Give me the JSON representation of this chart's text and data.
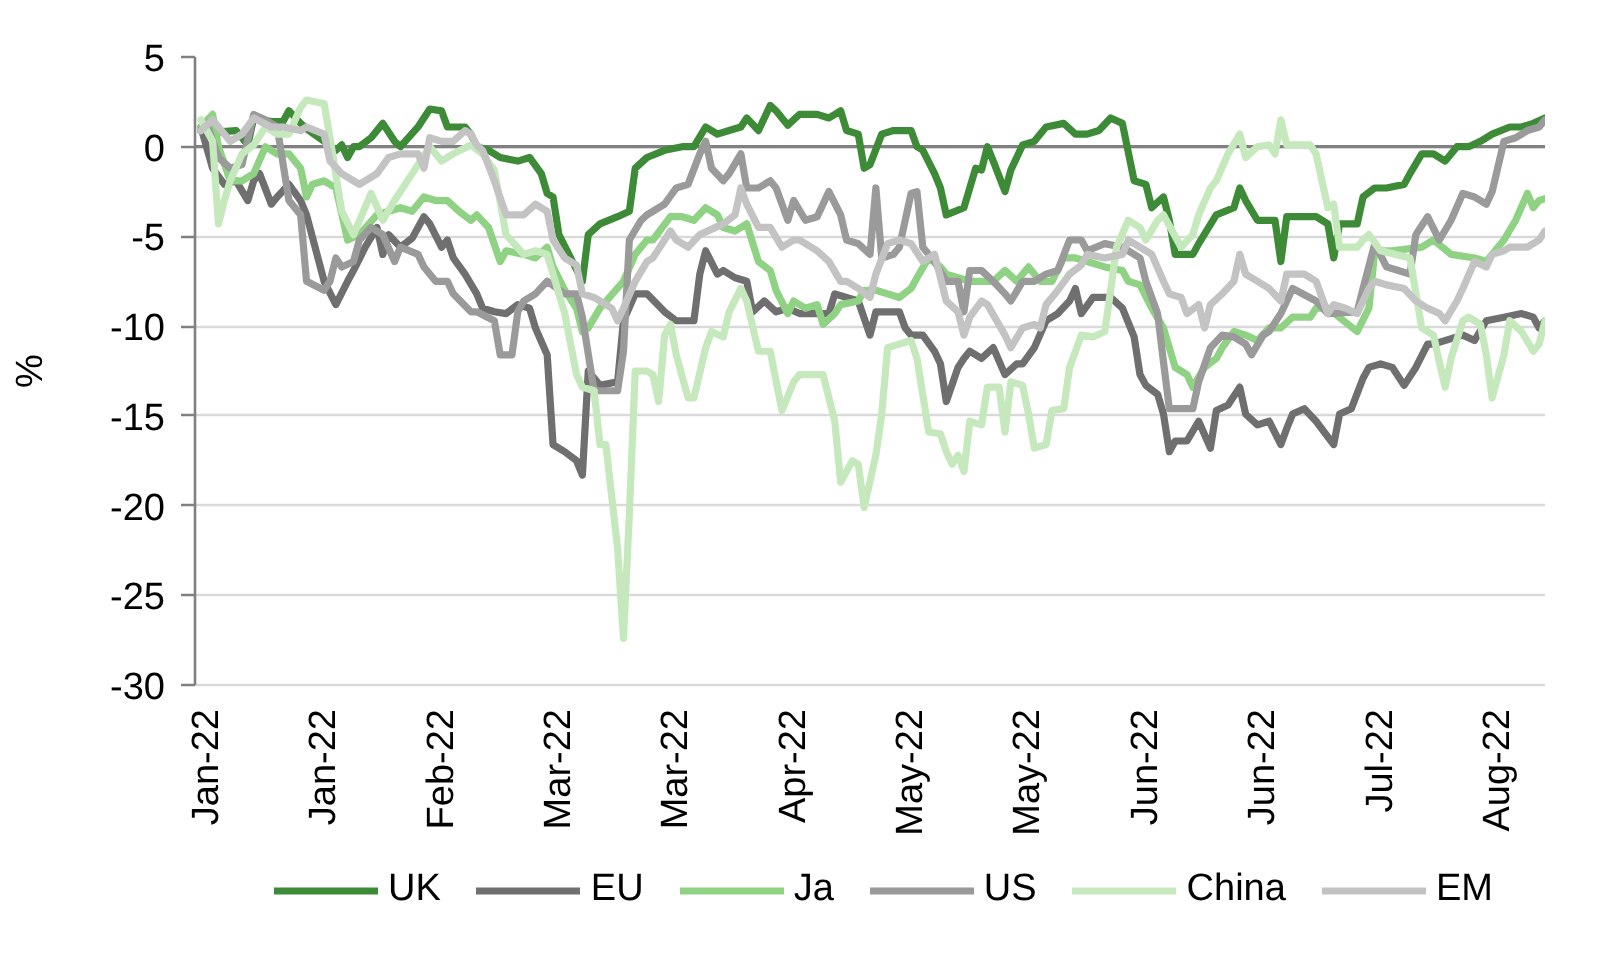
{
  "chart_data": {
    "type": "line",
    "ylabel": "%",
    "xlim": [
      "2021-12-30",
      "2022-08-17"
    ],
    "ylim": [
      -30,
      5
    ],
    "xticks": [
      {
        "value": "2022-01-01",
        "label": "Jan-22"
      },
      {
        "value": "2022-01-21",
        "label": "Jan-22"
      },
      {
        "value": "2022-02-10",
        "label": "Feb-22"
      },
      {
        "value": "2022-03-02",
        "label": "Mar-22"
      },
      {
        "value": "2022-03-22",
        "label": "Mar-22"
      },
      {
        "value": "2022-04-11",
        "label": "Apr-22"
      },
      {
        "value": "2022-05-01",
        "label": "May-22"
      },
      {
        "value": "2022-05-21",
        "label": "May-22"
      },
      {
        "value": "2022-06-10",
        "label": "Jun-22"
      },
      {
        "value": "2022-06-30",
        "label": "Jun-22"
      },
      {
        "value": "2022-07-20",
        "label": "Jul-22"
      },
      {
        "value": "2022-08-09",
        "label": "Aug-22"
      }
    ],
    "yticks": [
      5,
      0,
      -5,
      -10,
      -15,
      -20,
      -25,
      -30
    ],
    "grid": "y",
    "legend": "bottom",
    "ref_lines": [
      {
        "axis": "y",
        "value": 0,
        "color": "#808080"
      }
    ],
    "series": [
      {
        "name": "UK",
        "color": "#3d8b37",
        "x": [
          "2021-12-31",
          "2022-01-02",
          "2022-01-06",
          "2022-01-08",
          "2022-01-09",
          "2022-01-12",
          "2022-01-14",
          "2022-01-15",
          "2022-01-17",
          "2022-01-18",
          "2022-01-21",
          "2022-01-23",
          "2022-01-24",
          "2022-01-25",
          "2022-01-26",
          "2022-01-27",
          "2022-01-29",
          "2022-01-31",
          "2022-02-02",
          "2022-02-03",
          "2022-02-06",
          "2022-02-08",
          "2022-02-10",
          "2022-02-11",
          "2022-02-14",
          "2022-02-15",
          "2022-02-16",
          "2022-02-18",
          "2022-02-20",
          "2022-02-23",
          "2022-02-25",
          "2022-02-27",
          "2022-02-28",
          "2022-03-01",
          "2022-03-02",
          "2022-03-04",
          "2022-03-06",
          "2022-03-07",
          "2022-03-09",
          "2022-03-12",
          "2022-03-14",
          "2022-03-15",
          "2022-03-17",
          "2022-03-20",
          "2022-03-23",
          "2022-03-25",
          "2022-03-27",
          "2022-03-29",
          "2022-03-31",
          "2022-04-02",
          "2022-04-03",
          "2022-04-05",
          "2022-04-07",
          "2022-04-08",
          "2022-04-10",
          "2022-04-12",
          "2022-04-15",
          "2022-04-17",
          "2022-04-19",
          "2022-04-20",
          "2022-04-22",
          "2022-04-23",
          "2022-04-24",
          "2022-04-26",
          "2022-04-28",
          "2022-05-01",
          "2022-05-02",
          "2022-05-03",
          "2022-05-05",
          "2022-05-06",
          "2022-05-07",
          "2022-05-10",
          "2022-05-11",
          "2022-05-12",
          "2022-05-13",
          "2022-05-14",
          "2022-05-15",
          "2022-05-17",
          "2022-05-18",
          "2022-05-20",
          "2022-05-22",
          "2022-05-24",
          "2022-05-27",
          "2022-05-29",
          "2022-05-31",
          "2022-06-02",
          "2022-06-04",
          "2022-06-06",
          "2022-06-08",
          "2022-06-10",
          "2022-06-11",
          "2022-06-13",
          "2022-06-14",
          "2022-06-15",
          "2022-06-18",
          "2022-06-19",
          "2022-06-22",
          "2022-06-25",
          "2022-06-26",
          "2022-06-27",
          "2022-06-29",
          "2022-07-02",
          "2022-07-03",
          "2022-07-04",
          "2022-07-09",
          "2022-07-11",
          "2022-07-12",
          "2022-07-13",
          "2022-07-16",
          "2022-07-17",
          "2022-07-19",
          "2022-07-21",
          "2022-07-24",
          "2022-07-25",
          "2022-07-27",
          "2022-07-29",
          "2022-07-31",
          "2022-08-02",
          "2022-08-04",
          "2022-08-06",
          "2022-08-08",
          "2022-08-11",
          "2022-08-13",
          "2022-08-15",
          "2022-08-17"
        ],
        "values": [
          0.9,
          0.8,
          0.9,
          0.1,
          1.6,
          1.4,
          1.4,
          2.0,
          1.3,
          1.0,
          0.3,
          -0.2,
          0.1,
          -0.6,
          0.0,
          0.0,
          0.5,
          1.3,
          0.3,
          0.0,
          1.1,
          2.1,
          2.0,
          1.1,
          1.1,
          0.7,
          0.0,
          -0.2,
          -0.6,
          -0.8,
          -0.6,
          -1.5,
          -2.6,
          -2.8,
          -4.9,
          -6.2,
          -7.5,
          -4.9,
          -4.3,
          -3.9,
          -3.6,
          -1.2,
          -0.6,
          -0.2,
          0.0,
          0.0,
          1.1,
          0.7,
          0.9,
          1.1,
          1.6,
          0.9,
          2.3,
          2.0,
          1.2,
          1.8,
          1.8,
          1.6,
          2.0,
          0.9,
          0.7,
          -1.2,
          -1.0,
          0.7,
          0.9,
          0.9,
          0.0,
          -0.2,
          -1.5,
          -2.3,
          -3.8,
          -3.4,
          -2.3,
          -1.2,
          -1.3,
          0.0,
          -0.8,
          -2.5,
          -1.3,
          0.1,
          0.3,
          1.1,
          1.3,
          0.7,
          0.7,
          0.9,
          1.6,
          1.3,
          -1.9,
          -2.1,
          -3.4,
          -2.8,
          -4.1,
          -6.0,
          -6.0,
          -5.4,
          -3.8,
          -3.4,
          -2.3,
          -3.0,
          -4.1,
          -4.1,
          -6.4,
          -3.9,
          -3.9,
          -4.3,
          -6.2,
          -4.3,
          -4.3,
          -2.8,
          -2.3,
          -2.3,
          -2.1,
          -1.5,
          -0.4,
          -0.4,
          -0.8,
          0.0,
          0.0,
          0.3,
          0.7,
          1.1,
          1.1,
          1.3,
          1.6
        ]
      },
      {
        "name": "EU",
        "color": "#6f6f6f",
        "x": [
          "2021-12-31",
          "2022-01-02",
          "2022-01-04",
          "2022-01-06",
          "2022-01-08",
          "2022-01-09",
          "2022-01-10",
          "2022-01-12",
          "2022-01-13",
          "2022-01-15",
          "2022-01-17",
          "2022-01-18",
          "2022-01-21",
          "2022-01-23",
          "2022-01-25",
          "2022-01-26",
          "2022-01-28",
          "2022-01-30",
          "2022-01-31",
          "2022-02-01",
          "2022-02-03",
          "2022-02-05",
          "2022-02-07",
          "2022-02-08",
          "2022-02-10",
          "2022-02-11",
          "2022-02-12",
          "2022-02-14",
          "2022-02-16",
          "2022-02-17",
          "2022-02-19",
          "2022-02-21",
          "2022-02-23",
          "2022-02-25",
          "2022-02-26",
          "2022-02-28",
          "2022-03-01",
          "2022-03-03",
          "2022-03-05",
          "2022-03-06",
          "2022-03-07",
          "2022-03-09",
          "2022-03-12",
          "2022-03-13",
          "2022-03-15",
          "2022-03-17",
          "2022-03-20",
          "2022-03-22",
          "2022-03-25",
          "2022-03-26",
          "2022-03-27",
          "2022-03-29",
          "2022-03-30",
          "2022-04-01",
          "2022-04-03",
          "2022-04-04",
          "2022-04-06",
          "2022-04-08",
          "2022-04-10",
          "2022-04-12",
          "2022-04-17",
          "2022-04-18",
          "2022-04-20",
          "2022-04-22",
          "2022-04-24",
          "2022-04-25",
          "2022-04-29",
          "2022-04-30",
          "2022-05-01",
          "2022-05-03",
          "2022-05-05",
          "2022-05-06",
          "2022-05-07",
          "2022-05-09",
          "2022-05-10",
          "2022-05-11",
          "2022-05-13",
          "2022-05-15",
          "2022-05-17",
          "2022-05-19",
          "2022-05-20",
          "2022-05-22",
          "2022-05-24",
          "2022-05-26",
          "2022-05-28",
          "2022-05-29",
          "2022-05-30",
          "2022-06-01",
          "2022-06-04",
          "2022-06-06",
          "2022-06-08",
          "2022-06-09",
          "2022-06-10",
          "2022-06-12",
          "2022-06-13",
          "2022-06-14",
          "2022-06-15",
          "2022-06-17",
          "2022-06-19",
          "2022-06-21",
          "2022-06-22",
          "2022-06-24",
          "2022-06-26",
          "2022-06-27",
          "2022-06-29",
          "2022-07-01",
          "2022-07-03",
          "2022-07-04",
          "2022-07-05",
          "2022-07-07",
          "2022-07-09",
          "2022-07-12",
          "2022-07-13",
          "2022-07-15",
          "2022-07-17",
          "2022-07-18",
          "2022-07-20",
          "2022-07-22",
          "2022-07-24",
          "2022-07-26",
          "2022-07-28",
          "2022-07-29",
          "2022-08-02",
          "2022-08-03",
          "2022-08-05",
          "2022-08-07",
          "2022-08-10",
          "2022-08-13",
          "2022-08-15",
          "2022-08-16",
          "2022-08-17"
        ],
        "values": [
          1.1,
          -1.2,
          -2.1,
          -1.9,
          -3.0,
          -1.9,
          -1.5,
          -3.2,
          -2.8,
          -2.1,
          -3.0,
          -3.8,
          -7.5,
          -8.8,
          -7.5,
          -6.9,
          -5.6,
          -4.5,
          -6.0,
          -4.9,
          -5.6,
          -5.1,
          -3.9,
          -4.3,
          -5.6,
          -5.2,
          -6.2,
          -7.1,
          -8.2,
          -9.0,
          -9.2,
          -9.3,
          -8.8,
          -9.0,
          -10.1,
          -11.6,
          -16.6,
          -17.0,
          -17.5,
          -18.3,
          -12.5,
          -13.3,
          -13.1,
          -9.7,
          -8.2,
          -8.2,
          -9.2,
          -9.7,
          -9.7,
          -7.1,
          -5.8,
          -7.1,
          -6.9,
          -7.3,
          -7.5,
          -9.2,
          -8.6,
          -9.2,
          -9.0,
          -9.3,
          -9.3,
          -8.2,
          -8.4,
          -8.6,
          -10.5,
          -9.2,
          -9.2,
          -10.1,
          -10.5,
          -10.5,
          -11.4,
          -12.1,
          -14.2,
          -12.3,
          -11.8,
          -11.4,
          -11.8,
          -11.2,
          -12.7,
          -12.1,
          -12.1,
          -11.2,
          -9.7,
          -9.3,
          -8.6,
          -7.9,
          -9.3,
          -8.4,
          -8.4,
          -9.0,
          -10.6,
          -12.7,
          -13.3,
          -13.8,
          -14.9,
          -17.0,
          -16.4,
          -16.4,
          -15.3,
          -16.8,
          -14.7,
          -14.4,
          -13.4,
          -14.9,
          -15.5,
          -15.3,
          -16.6,
          -15.7,
          -14.9,
          -14.6,
          -15.3,
          -16.6,
          -14.9,
          -14.6,
          -12.9,
          -12.3,
          -12.1,
          -12.3,
          -13.3,
          -12.3,
          -11.0,
          -11.0,
          -10.6,
          -10.5,
          -10.8,
          -9.7,
          -9.5,
          -9.3,
          -9.5,
          -10.1,
          -9.7
        ]
      },
      {
        "name": "Ja",
        "color": "#8fd283",
        "x": [
          "2021-12-31",
          "2022-01-02",
          "2022-01-03",
          "2022-01-05",
          "2022-01-07",
          "2022-01-09",
          "2022-01-11",
          "2022-01-13",
          "2022-01-15",
          "2022-01-17",
          "2022-01-18",
          "2022-01-19",
          "2022-01-21",
          "2022-01-23",
          "2022-01-25",
          "2022-01-27",
          "2022-01-30",
          "2022-02-01",
          "2022-02-03",
          "2022-02-05",
          "2022-02-07",
          "2022-02-09",
          "2022-02-11",
          "2022-02-13",
          "2022-02-15",
          "2022-02-16",
          "2022-02-18",
          "2022-02-20",
          "2022-02-21",
          "2022-02-24",
          "2022-02-26",
          "2022-02-28",
          "2022-03-01",
          "2022-03-03",
          "2022-03-05",
          "2022-03-06",
          "2022-03-07",
          "2022-03-09",
          "2022-03-13",
          "2022-03-15",
          "2022-03-17",
          "2022-03-18",
          "2022-03-21",
          "2022-03-23",
          "2022-03-25",
          "2022-03-27",
          "2022-03-29",
          "2022-03-30",
          "2022-04-01",
          "2022-04-03",
          "2022-04-05",
          "2022-04-07",
          "2022-04-08",
          "2022-04-10",
          "2022-04-11",
          "2022-04-13",
          "2022-04-15",
          "2022-04-16",
          "2022-04-18",
          "2022-04-19",
          "2022-04-22",
          "2022-04-23",
          "2022-04-25",
          "2022-04-27",
          "2022-04-29",
          "2022-05-01",
          "2022-05-02",
          "2022-05-04",
          "2022-05-06",
          "2022-05-07",
          "2022-05-09",
          "2022-05-11",
          "2022-05-15",
          "2022-05-17",
          "2022-05-19",
          "2022-05-21",
          "2022-05-23",
          "2022-05-25",
          "2022-05-27",
          "2022-05-29",
          "2022-05-31",
          "2022-06-03",
          "2022-06-06",
          "2022-06-07",
          "2022-06-09",
          "2022-06-11",
          "2022-06-13",
          "2022-06-15",
          "2022-06-17",
          "2022-06-18",
          "2022-06-20",
          "2022-06-22",
          "2022-06-23",
          "2022-06-25",
          "2022-06-27",
          "2022-06-29",
          "2022-07-01",
          "2022-07-03",
          "2022-07-05",
          "2022-07-08",
          "2022-07-09",
          "2022-07-11",
          "2022-07-16",
          "2022-07-18",
          "2022-07-19",
          "2022-07-22",
          "2022-07-27",
          "2022-07-29",
          "2022-08-01",
          "2022-08-05",
          "2022-08-07",
          "2022-08-10",
          "2022-08-12",
          "2022-08-14",
          "2022-08-15",
          "2022-08-16",
          "2022-08-17"
        ],
        "values": [
          1.1,
          1.8,
          0.0,
          -1.9,
          -1.9,
          -1.5,
          0.0,
          -0.4,
          -0.4,
          -1.2,
          -2.8,
          -2.1,
          -1.9,
          -2.3,
          -5.2,
          -4.9,
          -3.8,
          -3.6,
          -3.4,
          -3.6,
          -2.8,
          -3.0,
          -3.0,
          -3.6,
          -4.1,
          -3.8,
          -4.5,
          -6.4,
          -5.8,
          -6.0,
          -6.2,
          -5.6,
          -6.7,
          -8.0,
          -9.0,
          -10.3,
          -10.1,
          -9.0,
          -7.5,
          -6.0,
          -5.2,
          -5.2,
          -3.9,
          -3.9,
          -4.1,
          -3.4,
          -3.8,
          -4.5,
          -4.7,
          -4.3,
          -6.4,
          -6.9,
          -8.0,
          -9.3,
          -8.6,
          -9.0,
          -8.8,
          -9.9,
          -9.3,
          -8.8,
          -8.6,
          -8.0,
          -8.0,
          -8.2,
          -8.4,
          -7.9,
          -7.3,
          -6.2,
          -6.7,
          -7.1,
          -7.3,
          -7.5,
          -7.5,
          -6.9,
          -7.5,
          -6.7,
          -7.5,
          -7.5,
          -6.2,
          -6.2,
          -6.4,
          -6.7,
          -6.9,
          -7.5,
          -7.7,
          -9.0,
          -10.1,
          -12.3,
          -12.7,
          -13.4,
          -12.3,
          -11.8,
          -11.2,
          -10.3,
          -10.5,
          -10.8,
          -10.1,
          -10.1,
          -9.5,
          -9.5,
          -9.0,
          -9.0,
          -10.3,
          -9.0,
          -5.8,
          -5.8,
          -5.6,
          -5.2,
          -6.0,
          -6.2,
          -6.4,
          -5.2,
          -4.1,
          -2.6,
          -3.4,
          -3.0,
          -2.9
        ]
      },
      {
        "name": "US",
        "color": "#9a9a9a",
        "x": [
          "2021-12-31",
          "2022-01-01",
          "2022-01-03",
          "2022-01-05",
          "2022-01-07",
          "2022-01-09",
          "2022-01-11",
          "2022-01-13",
          "2022-01-15",
          "2022-01-17",
          "2022-01-18",
          "2022-01-21",
          "2022-01-22",
          "2022-01-23",
          "2022-01-24",
          "2022-01-26",
          "2022-01-27",
          "2022-01-29",
          "2022-01-31",
          "2022-02-02",
          "2022-02-03",
          "2022-02-06",
          "2022-02-07",
          "2022-02-09",
          "2022-02-11",
          "2022-02-12",
          "2022-02-15",
          "2022-02-16",
          "2022-02-19",
          "2022-02-20",
          "2022-02-22",
          "2022-02-23",
          "2022-02-24",
          "2022-02-26",
          "2022-02-28",
          "2022-03-03",
          "2022-03-05",
          "2022-03-06",
          "2022-03-08",
          "2022-03-12",
          "2022-03-13",
          "2022-03-14",
          "2022-03-16",
          "2022-03-17",
          "2022-03-18",
          "2022-03-20",
          "2022-03-22",
          "2022-03-24",
          "2022-03-26",
          "2022-03-27",
          "2022-03-28",
          "2022-03-30",
          "2022-03-31",
          "2022-04-02",
          "2022-04-03",
          "2022-04-05",
          "2022-04-07",
          "2022-04-08",
          "2022-04-10",
          "2022-04-11",
          "2022-04-13",
          "2022-04-15",
          "2022-04-17",
          "2022-04-19",
          "2022-04-20",
          "2022-04-22",
          "2022-04-24",
          "2022-04-25",
          "2022-04-26",
          "2022-04-28",
          "2022-04-29",
          "2022-05-01",
          "2022-05-02",
          "2022-05-03",
          "2022-05-05",
          "2022-05-07",
          "2022-05-09",
          "2022-05-10",
          "2022-05-11",
          "2022-05-13",
          "2022-05-15",
          "2022-05-17",
          "2022-05-18",
          "2022-05-20",
          "2022-05-22",
          "2022-05-24",
          "2022-05-26",
          "2022-05-28",
          "2022-05-30",
          "2022-05-31",
          "2022-06-03",
          "2022-06-06",
          "2022-06-09",
          "2022-06-10",
          "2022-06-12",
          "2022-06-13",
          "2022-06-14",
          "2022-06-18",
          "2022-06-19",
          "2022-06-21",
          "2022-06-23",
          "2022-06-25",
          "2022-06-27",
          "2022-06-28",
          "2022-06-30",
          "2022-07-01",
          "2022-07-03",
          "2022-07-05",
          "2022-07-09",
          "2022-07-11",
          "2022-07-16",
          "2022-07-17",
          "2022-07-19",
          "2022-07-21",
          "2022-07-23",
          "2022-07-25",
          "2022-07-26",
          "2022-07-28",
          "2022-07-30",
          "2022-08-01",
          "2022-08-03",
          "2022-08-05",
          "2022-08-07",
          "2022-08-08",
          "2022-08-10",
          "2022-08-12",
          "2022-08-14",
          "2022-08-16",
          "2022-08-17"
        ],
        "values": [
          0.9,
          1.3,
          -0.6,
          -1.2,
          -1.0,
          1.8,
          1.5,
          1.1,
          -3.0,
          -3.8,
          -7.5,
          -8.0,
          -7.5,
          -6.2,
          -6.7,
          -6.4,
          -5.2,
          -4.5,
          -4.9,
          -6.4,
          -5.6,
          -6.0,
          -6.7,
          -7.5,
          -7.5,
          -8.2,
          -9.2,
          -9.2,
          -9.7,
          -11.6,
          -11.6,
          -9.2,
          -8.6,
          -8.2,
          -7.5,
          -8.2,
          -8.2,
          -9.5,
          -13.6,
          -13.6,
          -11.4,
          -5.2,
          -4.1,
          -3.8,
          -3.6,
          -3.2,
          -2.3,
          -2.1,
          -0.4,
          0.3,
          -1.2,
          -1.9,
          -1.5,
          -0.4,
          -2.3,
          -2.3,
          -1.9,
          -2.3,
          -4.1,
          -3.0,
          -4.1,
          -3.9,
          -2.5,
          -3.8,
          -5.2,
          -5.4,
          -6.0,
          -2.3,
          -6.2,
          -6.0,
          -5.6,
          -2.6,
          -2.5,
          -5.6,
          -6.4,
          -7.5,
          -7.5,
          -9.2,
          -6.9,
          -6.9,
          -7.5,
          -8.2,
          -8.6,
          -7.5,
          -7.5,
          -7.1,
          -6.9,
          -5.2,
          -5.2,
          -5.8,
          -5.4,
          -5.6,
          -6.2,
          -7.5,
          -9.3,
          -12.0,
          -14.6,
          -14.6,
          -13.1,
          -11.2,
          -10.5,
          -10.6,
          -11.0,
          -11.6,
          -10.5,
          -10.3,
          -9.3,
          -7.9,
          -8.6,
          -9.3,
          -9.2,
          -7.9,
          -5.4,
          -6.7,
          -6.9,
          -7.1,
          -4.9,
          -3.9,
          -5.2,
          -4.1,
          -2.6,
          -2.8,
          -3.2,
          -2.5,
          0.3,
          0.5,
          0.9,
          1.1,
          1.5
        ]
      },
      {
        "name": "China",
        "color": "#c5e9bd",
        "x": [
          "2021-12-31",
          "2022-01-02",
          "2022-01-03",
          "2022-01-04",
          "2022-01-05",
          "2022-01-07",
          "2022-01-09",
          "2022-01-11",
          "2022-01-13",
          "2022-01-15",
          "2022-01-17",
          "2022-01-18",
          "2022-01-21",
          "2022-01-22",
          "2022-01-24",
          "2022-01-26",
          "2022-01-29",
          "2022-01-31",
          "2022-02-02",
          "2022-02-05",
          "2022-02-08",
          "2022-02-10",
          "2022-02-12",
          "2022-02-15",
          "2022-02-17",
          "2022-02-19",
          "2022-02-21",
          "2022-02-24",
          "2022-02-26",
          "2022-02-28",
          "2022-03-03",
          "2022-03-05",
          "2022-03-06",
          "2022-03-08",
          "2022-03-09",
          "2022-03-10",
          "2022-03-12",
          "2022-03-13",
          "2022-03-14",
          "2022-03-15",
          "2022-03-17",
          "2022-03-18",
          "2022-03-19",
          "2022-03-20",
          "2022-03-21",
          "2022-03-22",
          "2022-03-24",
          "2022-03-25",
          "2022-03-27",
          "2022-03-28",
          "2022-03-30",
          "2022-03-31",
          "2022-04-02",
          "2022-04-03",
          "2022-04-05",
          "2022-04-07",
          "2022-04-09",
          "2022-04-11",
          "2022-04-12",
          "2022-04-16",
          "2022-04-18",
          "2022-04-19",
          "2022-04-21",
          "2022-04-22",
          "2022-04-23",
          "2022-04-25",
          "2022-04-26",
          "2022-04-27",
          "2022-04-29",
          "2022-05-01",
          "2022-05-02",
          "2022-05-04",
          "2022-05-06",
          "2022-05-07",
          "2022-05-08",
          "2022-05-09",
          "2022-05-10",
          "2022-05-11",
          "2022-05-13",
          "2022-05-14",
          "2022-05-16",
          "2022-05-17",
          "2022-05-18",
          "2022-05-20",
          "2022-05-21",
          "2022-05-22",
          "2022-05-24",
          "2022-05-25",
          "2022-05-27",
          "2022-05-28",
          "2022-05-30",
          "2022-06-01",
          "2022-06-03",
          "2022-06-04",
          "2022-06-05",
          "2022-06-07",
          "2022-06-09",
          "2022-06-10",
          "2022-06-12",
          "2022-06-13",
          "2022-06-16",
          "2022-06-18",
          "2022-06-19",
          "2022-06-21",
          "2022-06-22",
          "2022-06-24",
          "2022-06-26",
          "2022-06-27",
          "2022-06-29",
          "2022-07-01",
          "2022-07-02",
          "2022-07-03",
          "2022-07-04",
          "2022-07-08",
          "2022-07-09",
          "2022-07-11",
          "2022-07-12",
          "2022-07-13",
          "2022-07-16",
          "2022-07-17",
          "2022-07-18",
          "2022-07-20",
          "2022-07-25",
          "2022-07-27",
          "2022-07-29",
          "2022-07-30",
          "2022-07-31",
          "2022-08-01",
          "2022-08-03",
          "2022-08-04",
          "2022-08-06",
          "2022-08-07",
          "2022-08-08",
          "2022-08-10",
          "2022-08-11",
          "2022-08-13",
          "2022-08-15",
          "2022-08-16",
          "2022-08-17"
        ],
        "values": [
          1.5,
          0.3,
          -4.3,
          -3.0,
          -1.9,
          -0.4,
          0.1,
          1.1,
          0.7,
          0.7,
          2.2,
          2.6,
          2.4,
          0.5,
          -3.6,
          -4.9,
          -2.6,
          -4.1,
          -3.0,
          -1.5,
          0.0,
          -0.8,
          -0.4,
          0.1,
          -0.4,
          -1.3,
          -4.9,
          -6.0,
          -5.8,
          -6.0,
          -9.3,
          -12.7,
          -13.4,
          -13.6,
          -16.6,
          -16.6,
          -22.4,
          -27.4,
          -20.5,
          -12.5,
          -12.5,
          -12.7,
          -14.2,
          -10.5,
          -9.9,
          -11.6,
          -14.0,
          -14.0,
          -11.2,
          -10.3,
          -10.6,
          -9.2,
          -7.9,
          -8.6,
          -11.4,
          -11.4,
          -14.7,
          -13.1,
          -12.7,
          -12.7,
          -15.3,
          -18.7,
          -17.5,
          -17.7,
          -20.1,
          -17.2,
          -14.9,
          -11.2,
          -11.0,
          -10.8,
          -11.8,
          -15.9,
          -16.0,
          -17.0,
          -17.7,
          -17.2,
          -18.1,
          -15.3,
          -15.5,
          -13.4,
          -13.4,
          -15.9,
          -13.1,
          -13.3,
          -14.9,
          -16.8,
          -16.6,
          -14.7,
          -14.6,
          -12.3,
          -10.5,
          -10.6,
          -10.3,
          -8.0,
          -5.6,
          -4.1,
          -4.5,
          -5.2,
          -4.1,
          -3.8,
          -5.6,
          -4.9,
          -3.8,
          -2.3,
          -1.9,
          -0.4,
          0.7,
          -0.6,
          0.0,
          0.1,
          -0.4,
          1.5,
          0.1,
          0.1,
          -0.4,
          -3.4,
          -3.2,
          -5.6,
          -5.6,
          -5.2,
          -4.9,
          -5.8,
          -6.2,
          -10.1,
          -10.5,
          -12.0,
          -13.4,
          -11.8,
          -9.7,
          -9.5,
          -9.9,
          -11.6,
          -14.0,
          -11.6,
          -9.7,
          -10.3,
          -11.4,
          -11.0,
          -9.7
        ]
      },
      {
        "name": "EM",
        "color": "#c3c3c3",
        "x": [
          "2021-12-31",
          "2022-01-02",
          "2022-01-05",
          "2022-01-07",
          "2022-01-09",
          "2022-01-12",
          "2022-01-14",
          "2022-01-17",
          "2022-01-18",
          "2022-01-21",
          "2022-01-22",
          "2022-01-24",
          "2022-01-26",
          "2022-01-27",
          "2022-01-30",
          "2022-02-01",
          "2022-02-03",
          "2022-02-06",
          "2022-02-07",
          "2022-02-08",
          "2022-02-10",
          "2022-02-12",
          "2022-02-14",
          "2022-02-15",
          "2022-02-16",
          "2022-02-17",
          "2022-02-19",
          "2022-02-21",
          "2022-02-24",
          "2022-02-26",
          "2022-02-28",
          "2022-03-01",
          "2022-03-03",
          "2022-03-05",
          "2022-03-06",
          "2022-03-08",
          "2022-03-11",
          "2022-03-12",
          "2022-03-13",
          "2022-03-15",
          "2022-03-17",
          "2022-03-18",
          "2022-03-21",
          "2022-03-22",
          "2022-03-24",
          "2022-03-26",
          "2022-03-30",
          "2022-04-01",
          "2022-04-02",
          "2022-04-03",
          "2022-04-05",
          "2022-04-07",
          "2022-04-09",
          "2022-04-11",
          "2022-04-12",
          "2022-04-15",
          "2022-04-17",
          "2022-04-19",
          "2022-04-20",
          "2022-04-22",
          "2022-04-24",
          "2022-04-25",
          "2022-04-27",
          "2022-04-29",
          "2022-05-01",
          "2022-05-03",
          "2022-05-05",
          "2022-05-07",
          "2022-05-09",
          "2022-05-10",
          "2022-05-11",
          "2022-05-13",
          "2022-05-14",
          "2022-05-17",
          "2022-05-18",
          "2022-05-20",
          "2022-05-22",
          "2022-05-23",
          "2022-05-24",
          "2022-05-26",
          "2022-05-28",
          "2022-05-30",
          "2022-05-31",
          "2022-06-03",
          "2022-06-06",
          "2022-06-07",
          "2022-06-09",
          "2022-06-11",
          "2022-06-13",
          "2022-06-14",
          "2022-06-16",
          "2022-06-17",
          "2022-06-19",
          "2022-06-20",
          "2022-06-21",
          "2022-06-23",
          "2022-06-25",
          "2022-06-26",
          "2022-06-27",
          "2022-06-29",
          "2022-07-01",
          "2022-07-03",
          "2022-07-04",
          "2022-07-07",
          "2022-07-09",
          "2022-07-11",
          "2022-07-12",
          "2022-07-14",
          "2022-07-16",
          "2022-07-18",
          "2022-07-19",
          "2022-07-21",
          "2022-07-24",
          "2022-07-26",
          "2022-07-28",
          "2022-07-30",
          "2022-07-31",
          "2022-08-02",
          "2022-08-03",
          "2022-08-05",
          "2022-08-07",
          "2022-08-08",
          "2022-08-10",
          "2022-08-11",
          "2022-08-14",
          "2022-08-16",
          "2022-08-17"
        ],
        "values": [
          0.9,
          1.5,
          0.3,
          0.7,
          1.6,
          1.1,
          1.1,
          0.9,
          1.1,
          0.7,
          -0.8,
          -1.5,
          -1.9,
          -2.1,
          -1.5,
          -0.6,
          -0.4,
          -0.4,
          -1.2,
          0.5,
          0.3,
          0.3,
          0.9,
          0.7,
          0.1,
          -0.2,
          -1.9,
          -3.8,
          -3.8,
          -3.2,
          -3.6,
          -5.2,
          -6.2,
          -6.6,
          -8.2,
          -8.4,
          -9.0,
          -9.7,
          -9.0,
          -7.5,
          -6.4,
          -6.2,
          -4.7,
          -5.2,
          -5.6,
          -4.9,
          -4.3,
          -3.8,
          -2.3,
          -3.2,
          -4.5,
          -4.5,
          -5.6,
          -5.2,
          -5.2,
          -5.8,
          -6.4,
          -7.5,
          -7.5,
          -7.9,
          -8.4,
          -7.1,
          -5.4,
          -5.2,
          -5.4,
          -6.4,
          -6.0,
          -8.6,
          -9.2,
          -10.5,
          -9.5,
          -8.6,
          -8.8,
          -10.5,
          -11.2,
          -10.1,
          -9.9,
          -10.1,
          -8.8,
          -8.0,
          -7.1,
          -6.6,
          -6.0,
          -6.2,
          -6.0,
          -5.2,
          -5.6,
          -6.0,
          -7.5,
          -8.2,
          -8.4,
          -9.3,
          -8.8,
          -10.1,
          -8.8,
          -8.2,
          -7.5,
          -6.0,
          -7.1,
          -7.5,
          -7.9,
          -8.6,
          -7.1,
          -7.1,
          -7.5,
          -9.3,
          -8.8,
          -9.0,
          -9.3,
          -7.9,
          -7.5,
          -7.7,
          -7.9,
          -8.6,
          -9.0,
          -9.3,
          -9.7,
          -8.6,
          -7.9,
          -6.4,
          -6.7,
          -6.0,
          -5.8,
          -5.6,
          -5.6,
          -5.2,
          -4.7
        ]
      }
    ]
  }
}
